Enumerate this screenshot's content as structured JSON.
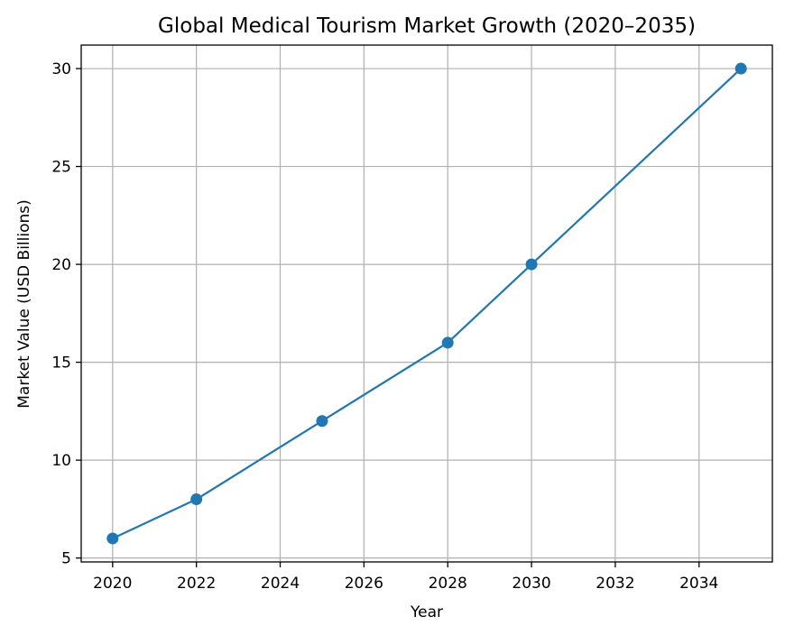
{
  "chart_data": {
    "type": "line",
    "title": "Global Medical Tourism Market Growth (2020–2035)",
    "xlabel": "Year",
    "ylabel": "Market Value (USD Billions)",
    "xlim": [
      2019.25,
      2035.75
    ],
    "ylim": [
      4.8,
      31.2
    ],
    "xticks": [
      2020,
      2022,
      2024,
      2026,
      2028,
      2030,
      2032,
      2034
    ],
    "yticks": [
      5,
      10,
      15,
      20,
      25,
      30
    ],
    "grid": true,
    "series": [
      {
        "color": "#1f77b4",
        "marker": "circle",
        "x": [
          2020,
          2022,
          2025,
          2028,
          2030,
          2035
        ],
        "y": [
          6,
          8,
          12,
          16,
          20,
          30
        ]
      }
    ]
  }
}
